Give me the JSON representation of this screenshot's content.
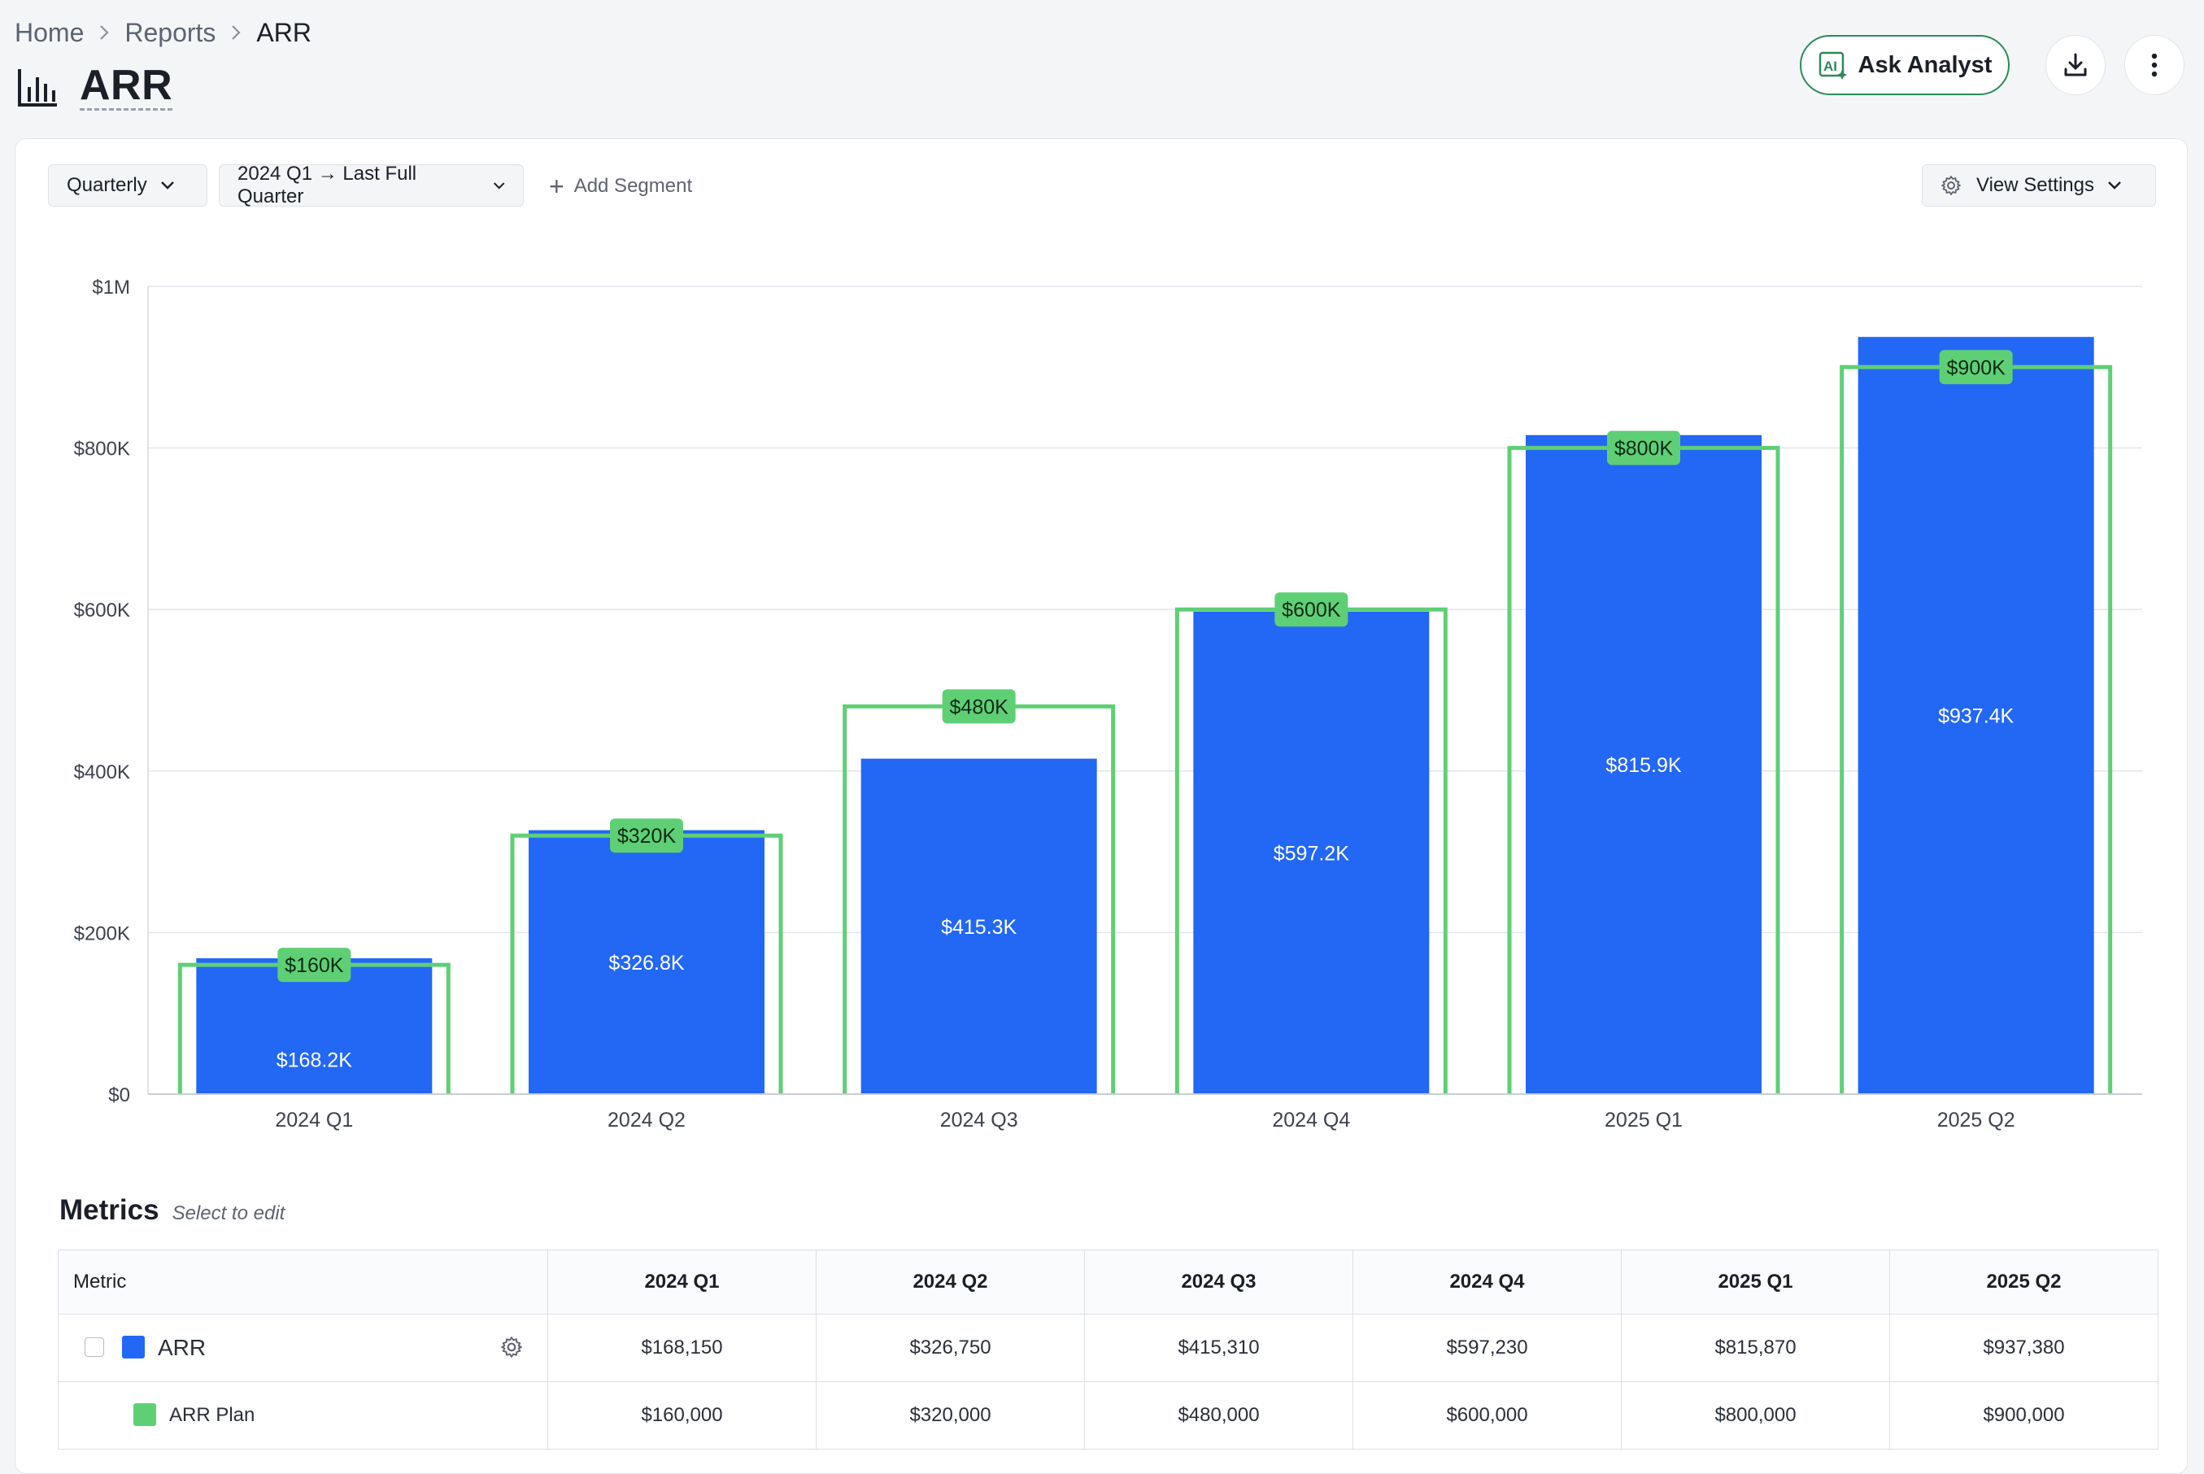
{
  "breadcrumb": {
    "home": "Home",
    "reports": "Reports",
    "current": "ARR"
  },
  "page": {
    "title": "ARR",
    "icon": "bar-chart-icon"
  },
  "header_actions": {
    "ask_label": "Ask Analyst",
    "ask_icon": "ai-sparkle-icon",
    "download_icon": "download-icon",
    "more_icon": "more-vertical-icon"
  },
  "controls": {
    "granularity": "Quarterly",
    "range": "2024 Q1 → Last Full Quarter",
    "add_segment": "Add Segment",
    "view_settings": "View Settings"
  },
  "colors": {
    "actual": "#2367f5",
    "plan": "#5fcf76",
    "plan_label_bg": "#5fcf76",
    "accent": "#2b8a5a"
  },
  "chart_data": {
    "type": "bar",
    "categories": [
      "2024 Q1",
      "2024 Q2",
      "2024 Q3",
      "2024 Q4",
      "2025 Q1",
      "2025 Q2"
    ],
    "series": [
      {
        "name": "ARR",
        "values": [
          168150,
          326750,
          415310,
          597230,
          815870,
          937380
        ],
        "labels": [
          "$168.2K",
          "$326.8K",
          "$415.3K",
          "$597.2K",
          "$815.9K",
          "$937.4K"
        ]
      },
      {
        "name": "ARR Plan",
        "values": [
          160000,
          320000,
          480000,
          600000,
          800000,
          900000
        ],
        "labels": [
          "$160K",
          "$320K",
          "$480K",
          "$600K",
          "$800K",
          "$900K"
        ]
      }
    ],
    "ylim": [
      0,
      1000000
    ],
    "yticks": [
      0,
      200000,
      400000,
      600000,
      800000,
      1000000
    ],
    "ytick_labels": [
      "$0",
      "$200K",
      "$400K",
      "$600K",
      "$800K",
      "$1M"
    ],
    "grid": true
  },
  "metrics": {
    "title": "Metrics",
    "subtitle": "Select to edit",
    "header_metric": "Metric",
    "columns": [
      "2024 Q1",
      "2024 Q2",
      "2024 Q3",
      "2024 Q4",
      "2025 Q1",
      "2025 Q2"
    ],
    "rows": [
      {
        "label": "ARR",
        "values": [
          "$168,150",
          "$326,750",
          "$415,310",
          "$597,230",
          "$815,870",
          "$937,380"
        ]
      },
      {
        "label": "ARR Plan",
        "values": [
          "$160,000",
          "$320,000",
          "$480,000",
          "$600,000",
          "$800,000",
          "$900,000"
        ]
      }
    ]
  }
}
